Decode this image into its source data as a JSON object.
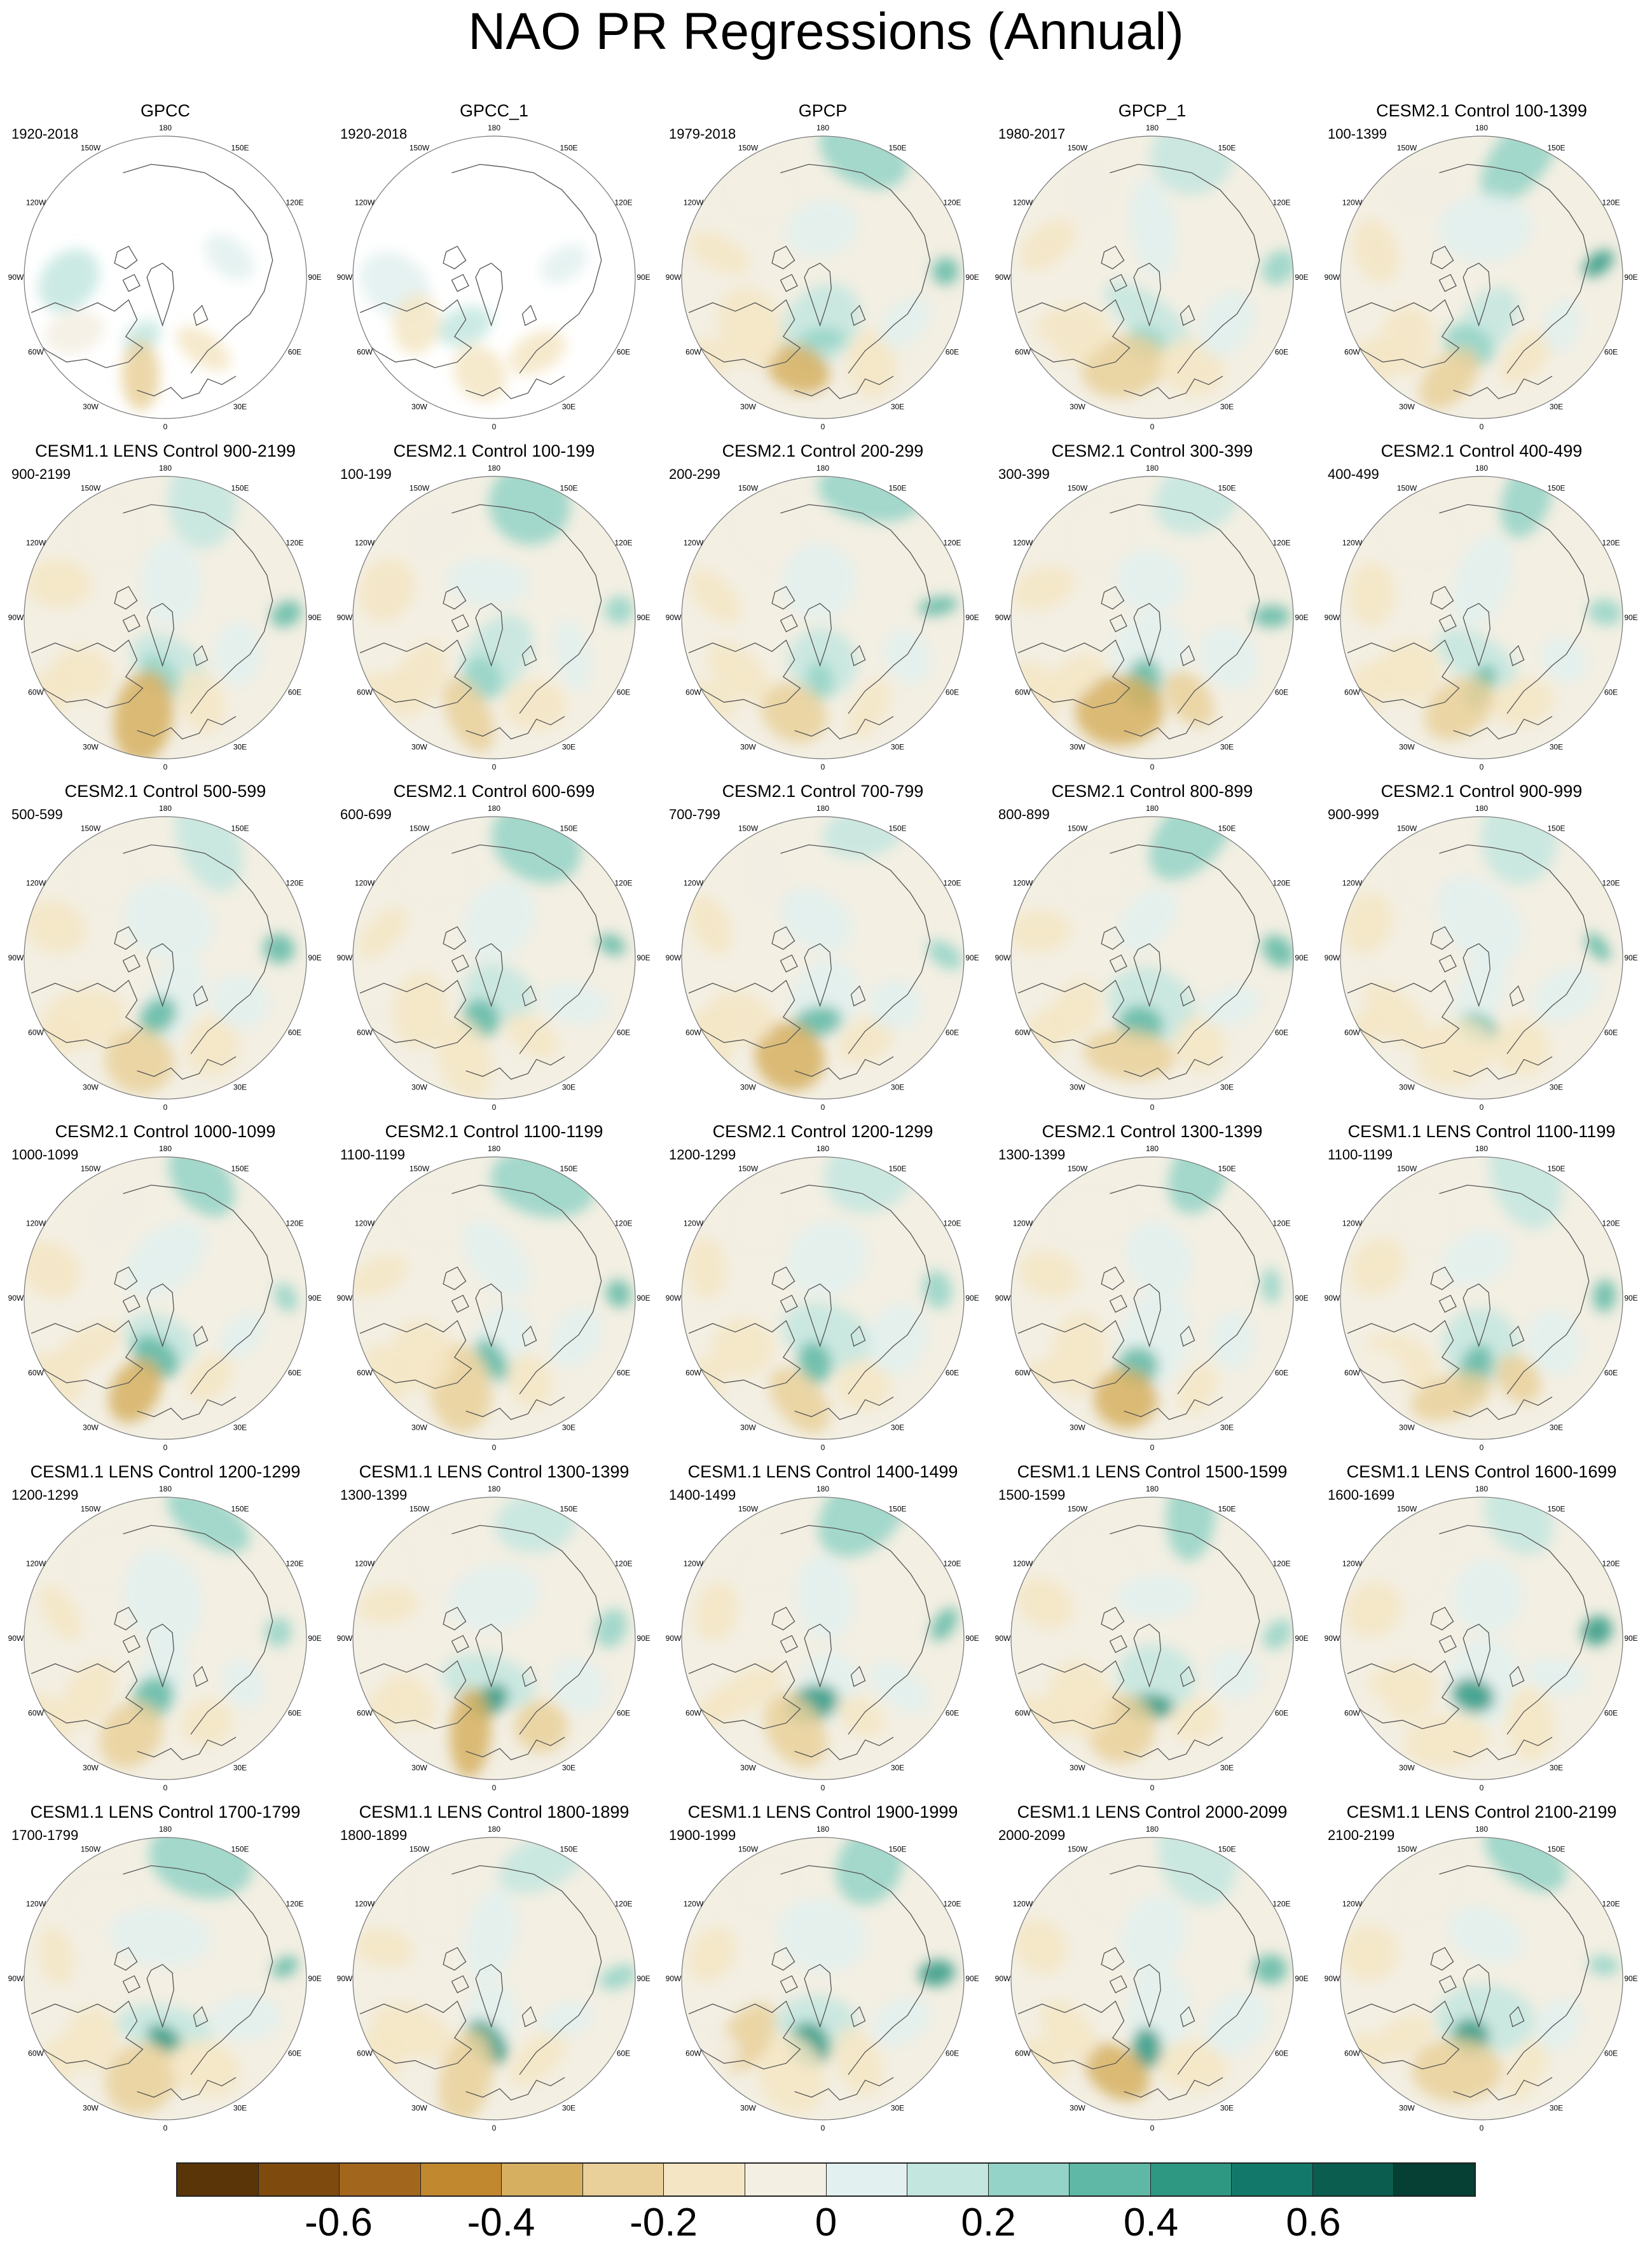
{
  "title": "NAO PR Regressions (Annual)",
  "chart_data": {
    "type": "heatmap",
    "projection": "north-polar-stereographic",
    "layout": {
      "rows": 6,
      "cols": 5
    },
    "longitude_labels": [
      "180",
      "150E",
      "120E",
      "90E",
      "60E",
      "30E",
      "0",
      "30W",
      "60W",
      "90W",
      "120W",
      "150W"
    ],
    "panels": [
      {
        "title": "GPCC",
        "period": "1920-2018",
        "land_only": true
      },
      {
        "title": "GPCC_1",
        "period": "1920-2018",
        "land_only": true
      },
      {
        "title": "GPCP",
        "period": "1979-2018",
        "land_only": false
      },
      {
        "title": "GPCP_1",
        "period": "1980-2017",
        "land_only": false
      },
      {
        "title": "CESM2.1 Control 100-1399",
        "period": "100-1399",
        "land_only": false
      },
      {
        "title": "CESM1.1 LENS Control 900-2199",
        "period": "900-2199",
        "land_only": false
      },
      {
        "title": "CESM2.1 Control 100-199",
        "period": "100-199",
        "land_only": false
      },
      {
        "title": "CESM2.1 Control 200-299",
        "period": "200-299",
        "land_only": false
      },
      {
        "title": "CESM2.1 Control 300-399",
        "period": "300-399",
        "land_only": false
      },
      {
        "title": "CESM2.1 Control 400-499",
        "period": "400-499",
        "land_only": false
      },
      {
        "title": "CESM2.1 Control 500-599",
        "period": "500-599",
        "land_only": false
      },
      {
        "title": "CESM2.1 Control 600-699",
        "period": "600-699",
        "land_only": false
      },
      {
        "title": "CESM2.1 Control 700-799",
        "period": "700-799",
        "land_only": false
      },
      {
        "title": "CESM2.1 Control 800-899",
        "period": "800-899",
        "land_only": false
      },
      {
        "title": "CESM2.1 Control 900-999",
        "period": "900-999",
        "land_only": false
      },
      {
        "title": "CESM2.1 Control 1000-1099",
        "period": "1000-1099",
        "land_only": false
      },
      {
        "title": "CESM2.1 Control 1100-1199",
        "period": "1100-1199",
        "land_only": false
      },
      {
        "title": "CESM2.1 Control 1200-1299",
        "period": "1200-1299",
        "land_only": false
      },
      {
        "title": "CESM2.1 Control 1300-1399",
        "period": "1300-1399",
        "land_only": false
      },
      {
        "title": "CESM1.1 LENS Control 1100-1199",
        "period": "1100-1199",
        "land_only": false
      },
      {
        "title": "CESM1.1 LENS Control 1200-1299",
        "period": "1200-1299",
        "land_only": false
      },
      {
        "title": "CESM1.1 LENS Control 1300-1399",
        "period": "1300-1399",
        "land_only": false
      },
      {
        "title": "CESM1.1 LENS Control 1400-1499",
        "period": "1400-1499",
        "land_only": false
      },
      {
        "title": "CESM1.1 LENS Control 1500-1599",
        "period": "1500-1599",
        "land_only": false
      },
      {
        "title": "CESM1.1 LENS Control 1600-1699",
        "period": "1600-1699",
        "land_only": false
      },
      {
        "title": "CESM1.1 LENS Control 1700-1799",
        "period": "1700-1799",
        "land_only": false
      },
      {
        "title": "CESM1.1 LENS Control 1800-1899",
        "period": "1800-1899",
        "land_only": false
      },
      {
        "title": "CESM1.1 LENS Control 1900-1999",
        "period": "1900-1999",
        "land_only": false
      },
      {
        "title": "CESM1.1 LENS Control 2000-2099",
        "period": "2000-2099",
        "land_only": false
      },
      {
        "title": "CESM1.1 LENS Control 2100-2199",
        "period": "2100-2199",
        "land_only": false
      }
    ],
    "colorbar": {
      "colors": [
        "#5a3508",
        "#7e4a0e",
        "#a3661d",
        "#c2882f",
        "#d6b060",
        "#e9d09a",
        "#f4e6c4",
        "#f3efe3",
        "#e2f0ef",
        "#c3e6df",
        "#94d3c7",
        "#5fb8a6",
        "#2f9883",
        "#12796a",
        "#0b5e4f",
        "#063f33"
      ],
      "tick_labels": [
        "-0.6",
        "-0.4",
        "-0.2",
        "0",
        "0.2",
        "0.4",
        "0.6"
      ],
      "tick_values": [
        -0.6,
        -0.4,
        -0.2,
        0,
        0.2,
        0.4,
        0.6
      ],
      "range": [
        -0.8,
        0.8
      ]
    }
  }
}
